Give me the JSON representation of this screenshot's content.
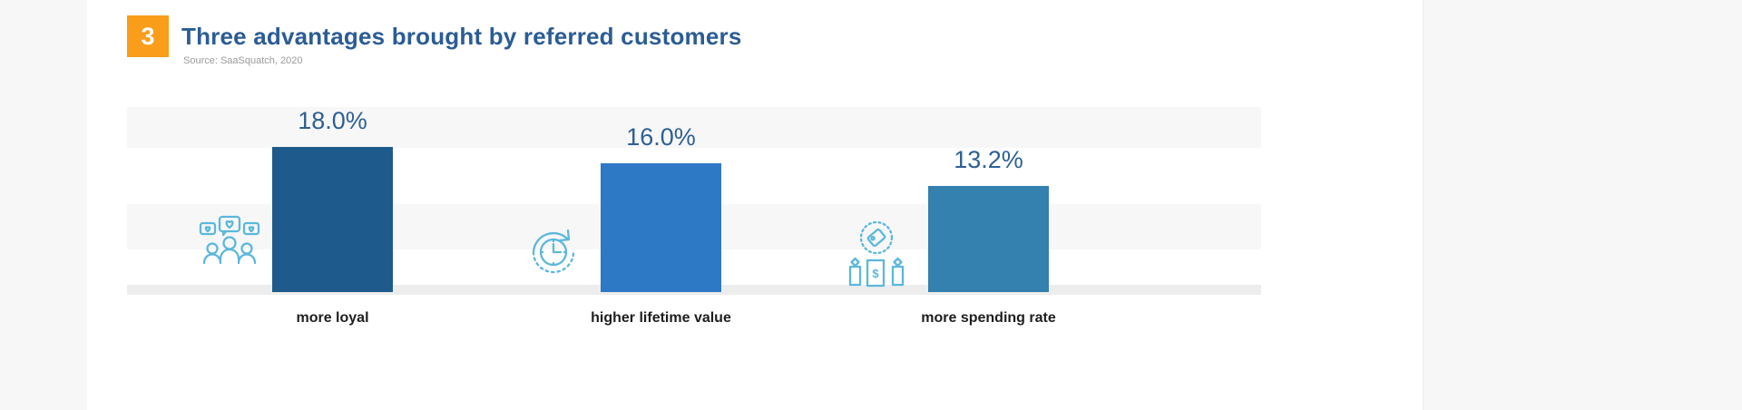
{
  "header": {
    "badge": "3",
    "title": "Three advantages brought by referred customers",
    "source": "Source: SaaSquatch, 2020"
  },
  "chart_data": {
    "type": "bar",
    "title": "Three advantages brought by referred customers",
    "source": "Source: SaaSquatch, 2020",
    "categories": [
      "more loyal",
      "higher lifetime value",
      "more spending rate"
    ],
    "values": [
      18.0,
      16.0,
      13.2
    ],
    "value_labels": [
      "18.0%",
      "16.0%",
      "13.2%"
    ],
    "bar_colors": [
      "#1e5b8c",
      "#2e79c6",
      "#3480af"
    ],
    "icons": [
      "people-hearts-icon",
      "clock-cycle-icon",
      "price-tags-icon"
    ],
    "xlabel": "",
    "ylabel": "",
    "ylim": [
      0,
      20
    ],
    "grid": "subtle horizontal bands, no axis ticks",
    "legend": "none"
  },
  "colors": {
    "badge_bg": "#f99d1b",
    "title_text": "#2b5c95",
    "source_text": "#9b9b9b",
    "value_label": "#2d5f94",
    "category_label": "#1e1e1e",
    "icon_stroke": "#5cb8dc",
    "band": "#f7f7f8",
    "baseline": "#ededed"
  }
}
